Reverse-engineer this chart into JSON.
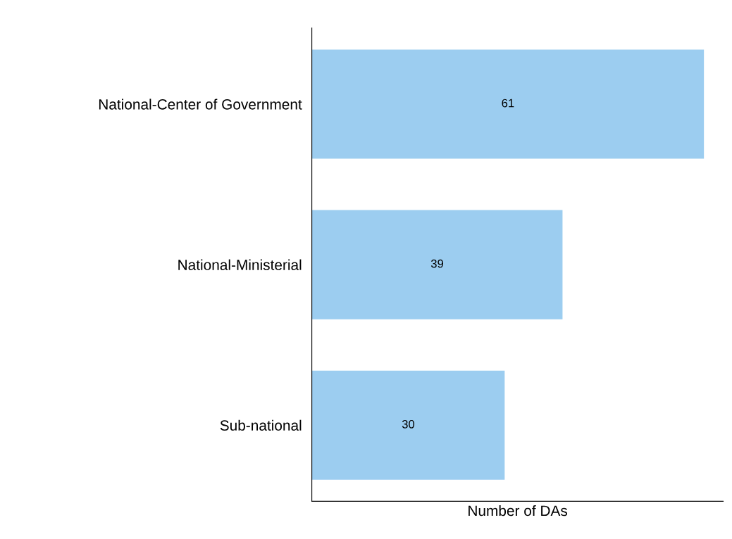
{
  "chart_data": {
    "type": "bar",
    "orientation": "horizontal",
    "xlabel": "Number of DAs",
    "categories": [
      "National-Center of Government",
      "National-Ministerial",
      "Sub-national"
    ],
    "values": [
      61,
      39,
      30
    ],
    "color": "#9ccdf0",
    "xlim": [
      0,
      64
    ],
    "data_labels": true,
    "grid": false,
    "legend": false,
    "tick_labels": "y"
  }
}
